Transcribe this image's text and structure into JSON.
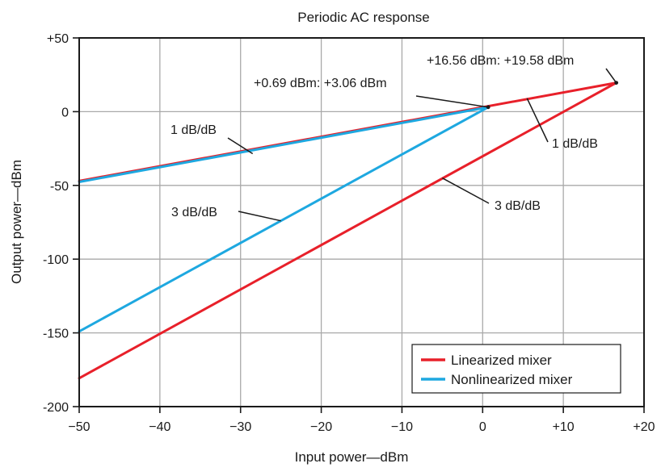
{
  "chart_data": {
    "type": "line",
    "title": "Periodic AC response",
    "xlabel": "Input power—dBm",
    "ylabel": "Output power—dBm",
    "xlim": [
      -50,
      20
    ],
    "ylim": [
      -200,
      50
    ],
    "x_ticks": [
      -50,
      -40,
      -30,
      -20,
      -10,
      0,
      10,
      20
    ],
    "y_ticks": [
      -200,
      -150,
      -100,
      -50,
      0,
      50
    ],
    "x_tick_labels": [
      "−50",
      "−40",
      "−30",
      "−20",
      "−10",
      "0",
      "+10",
      "+20"
    ],
    "y_tick_labels": [
      "-200",
      "-150",
      "-100",
      "-50",
      "0",
      "+50"
    ],
    "grid": true,
    "legend_position": "bottom-right",
    "series": [
      {
        "name": "Linearized mixer",
        "color": "#e8202a",
        "lines": [
          {
            "x": [
              -50,
              16.56
            ],
            "y": [
              -180.74,
              19.58
            ]
          },
          {
            "x": [
              -50,
              16.56
            ],
            "y": [
              -46.98,
              19.58
            ]
          }
        ]
      },
      {
        "name": "Nonlinearized mixer",
        "color": "#1ea8e0",
        "lines": [
          {
            "x": [
              -50,
              0.69
            ],
            "y": [
              -149.01,
              3.06
            ]
          },
          {
            "x": [
              -50,
              0.69
            ],
            "y": [
              -47.63,
              3.06
            ]
          }
        ]
      }
    ],
    "annotations": [
      {
        "text": "+16.56 dBm: +19.58 dBm",
        "target": [
          16.56,
          19.58
        ]
      },
      {
        "text": "+0.69 dBm: +3.06 dBm",
        "target": [
          0.69,
          3.06
        ]
      },
      {
        "text": "1 dB/dB",
        "target": [
          -28.5,
          -28.5
        ]
      },
      {
        "text": "1 dB/dB",
        "target": [
          5.5,
          9.1
        ]
      },
      {
        "text": "3 dB/dB",
        "target": [
          -25,
          -74
        ]
      },
      {
        "text": "3 dB/dB",
        "target": [
          -5,
          -45
        ]
      }
    ]
  }
}
